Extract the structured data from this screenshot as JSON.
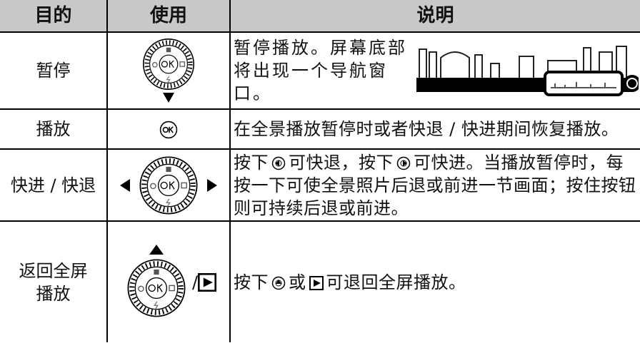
{
  "table": {
    "header": [
      "目的",
      "使用",
      "说明"
    ],
    "rows": [
      {
        "purpose": "暂停",
        "description": "暂停播放。屏幕底部将出现一个导航窗口。"
      },
      {
        "purpose": "播放",
        "description": "在全景播放暂停时或者快退 / 快进期间恢复播放。"
      },
      {
        "purpose": "快进 / 快退",
        "description": [
          "按下",
          "可快退，按下",
          "可快进。当播放暂停时，每按一下可使全景照片后退或前进一节画面；按住按钮则可持续后退或前进。"
        ]
      },
      {
        "purpose": "返回全屏播放",
        "use_suffix": "/",
        "description": [
          "按下",
          "或",
          "可退回全屏播放。"
        ]
      }
    ]
  }
}
